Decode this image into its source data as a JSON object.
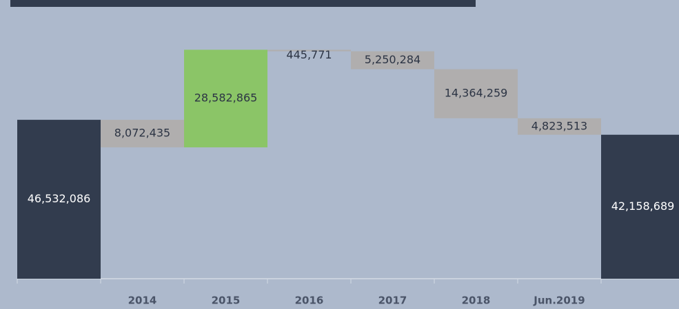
{
  "chart_data": {
    "type": "waterfall",
    "categories": [
      null,
      "2014",
      "2015",
      "2016",
      "2017",
      "2018",
      "Jun.2019",
      null
    ],
    "measure": [
      "total",
      "relative",
      "relative",
      "relative",
      "relative",
      "relative",
      "relative",
      "total"
    ],
    "values": [
      46532086,
      -8072435,
      28582865,
      -445771,
      -5250284,
      -14364259,
      -4823513,
      42158689
    ],
    "value_labels": [
      "46,532,086",
      "8,072,435",
      "28,582,865",
      "445,771",
      "5,250,284",
      "14,364,259",
      "4,823,513",
      "42,158,689"
    ],
    "colors": {
      "total": "#323c4e",
      "increase": "#8bc567",
      "decrease": "#b0aeae"
    },
    "ylim": [
      0,
      80000000
    ]
  }
}
